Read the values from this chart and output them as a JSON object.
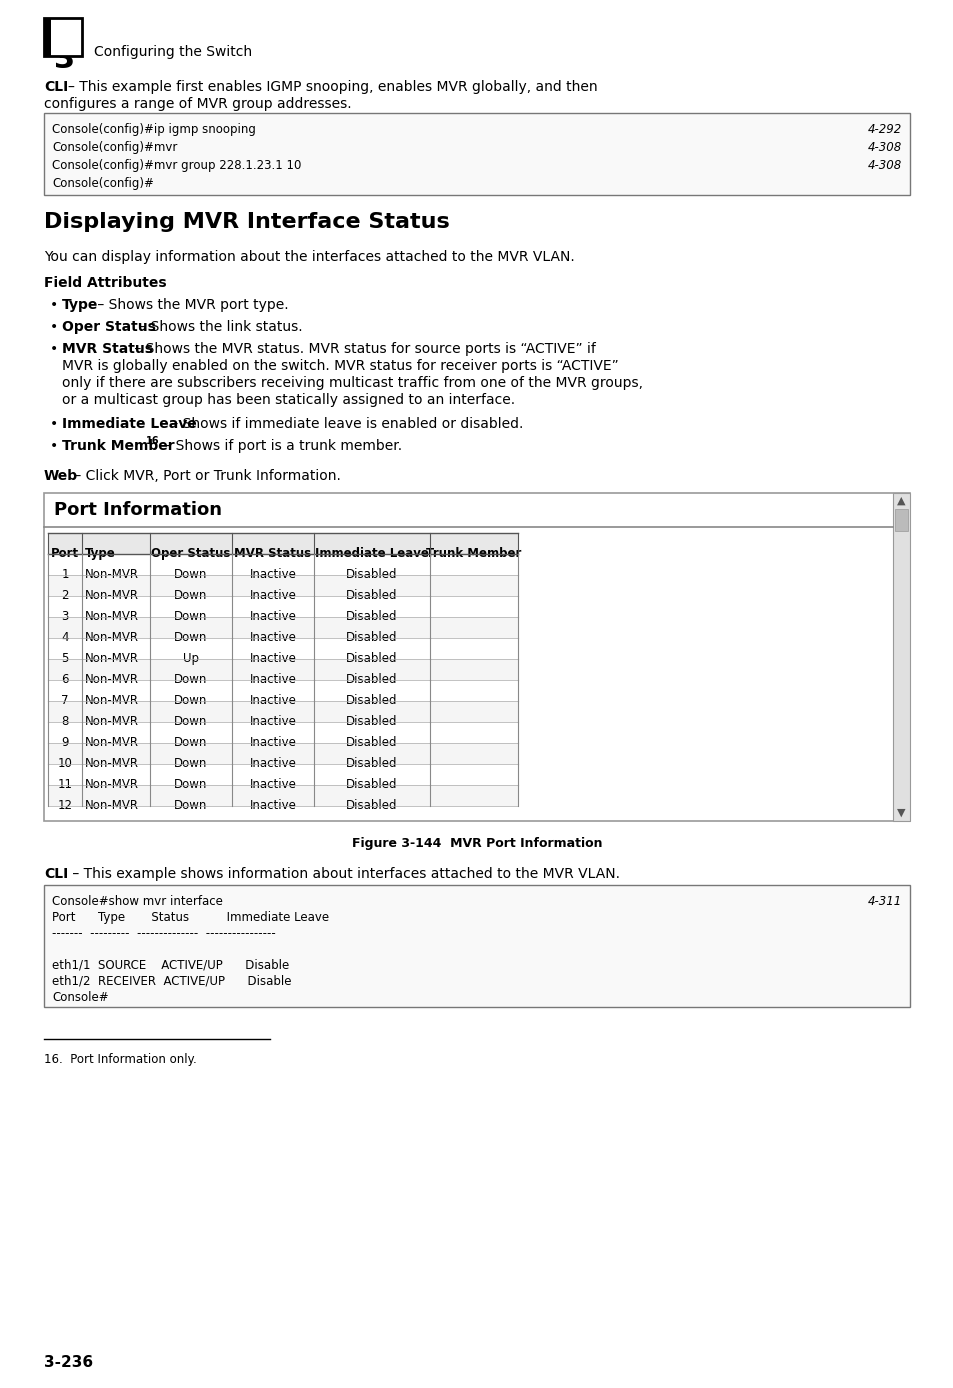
{
  "page_number": "3-236",
  "chapter_number": "3",
  "chapter_title": "Configuring the Switch",
  "section_title": "Displaying MVR Interface Status",
  "cli_box1_code": [
    [
      "Console(config)#ip igmp snooping",
      "4-292"
    ],
    [
      "Console(config)#mvr",
      "4-308"
    ],
    [
      "Console(config)#mvr group 228.1.23.1 10",
      "4-308"
    ],
    [
      "Console(config)#",
      ""
    ]
  ],
  "table_headers": [
    "Port",
    "Type",
    "Oper Status",
    "MVR Status",
    "Immediate Leave",
    "Trunk Member"
  ],
  "table_rows": [
    [
      "1",
      "Non-MVR",
      "Down",
      "Inactive",
      "Disabled",
      ""
    ],
    [
      "2",
      "Non-MVR",
      "Down",
      "Inactive",
      "Disabled",
      ""
    ],
    [
      "3",
      "Non-MVR",
      "Down",
      "Inactive",
      "Disabled",
      ""
    ],
    [
      "4",
      "Non-MVR",
      "Down",
      "Inactive",
      "Disabled",
      ""
    ],
    [
      "5",
      "Non-MVR",
      "Up",
      "Inactive",
      "Disabled",
      ""
    ],
    [
      "6",
      "Non-MVR",
      "Down",
      "Inactive",
      "Disabled",
      ""
    ],
    [
      "7",
      "Non-MVR",
      "Down",
      "Inactive",
      "Disabled",
      ""
    ],
    [
      "8",
      "Non-MVR",
      "Down",
      "Inactive",
      "Disabled",
      ""
    ],
    [
      "9",
      "Non-MVR",
      "Down",
      "Inactive",
      "Disabled",
      ""
    ],
    [
      "10",
      "Non-MVR",
      "Down",
      "Inactive",
      "Disabled",
      ""
    ],
    [
      "11",
      "Non-MVR",
      "Down",
      "Inactive",
      "Disabled",
      ""
    ],
    [
      "12",
      "Non-MVR",
      "Down",
      "Inactive",
      "Disabled",
      ""
    ]
  ],
  "figure_caption": "Figure 3-144  MVR Port Information",
  "cli_box2_code": [
    [
      "Console#show mvr interface",
      "4-311"
    ],
    [
      "Port      Type       Status          Immediate Leave",
      ""
    ],
    [
      "-------  ---------  --------------  ----------------",
      ""
    ],
    [
      "",
      ""
    ],
    [
      "eth1/1  SOURCE    ACTIVE/UP      Disable",
      ""
    ],
    [
      "eth1/2  RECEIVER  ACTIVE/UP      Disable",
      ""
    ],
    [
      "Console#",
      ""
    ]
  ],
  "bg_color": "#ffffff"
}
